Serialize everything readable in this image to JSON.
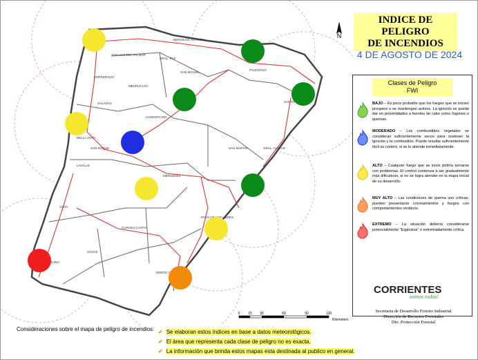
{
  "title_lines": [
    "INDICE DE PELIGRO",
    "DE INCENDIOS"
  ],
  "date": "4 DE AGOSTO DE 2024",
  "north": "N",
  "legend": {
    "title": "Clases de Peligro",
    "subtitle": "FWI",
    "classes": [
      {
        "name": "BAJO",
        "text": "– Es poco probable que los fuegos que se inicien prospere o se mantengan activos. La ignición se puede dar en proximidades a fuentes de calor como fogones o quemas."
      },
      {
        "name": "MODERADO",
        "text": "– Los combustibles vegetales se consideran suficientemente secos para sostener la ignición y la combustión. Puede resultar suficientemente fácil su control, si se lo atiende inmediatamente."
      },
      {
        "name": "ALTO",
        "text": "– Cualquier fuego que se inicie podría tornarse con problemas. El control comienza a ser gradualmente más dificultoso, si no se logra atender en la etapa inicial de su desarrollo."
      },
      {
        "name": "MUY ALTO",
        "text": "– Las condiciones de quema son críticas, pueden presentarse coronamientos y fuegos con comportamientos erráticos."
      },
      {
        "name": "EXTREMO",
        "text": "– La situación debería considerarse potencialmente \"Explosiva\" o extremadamente crítica."
      }
    ]
  },
  "logo": {
    "name": "CORRIENTES",
    "slogan": "somos todos!"
  },
  "agency": [
    "Secretaria de Desarrollo Foresto Industrial",
    "Dirección de Recursos Forestales",
    "Dto. Protección Forestal"
  ],
  "scale": {
    "ticks": [
      "0",
      "15",
      "30",
      "60",
      "90",
      "120"
    ],
    "unit": "Kilometers"
  },
  "considerations": {
    "title": "Consideraciones sobre el mapa de peligro de incendios:",
    "items": [
      "Se elaboran estos índices en base a datos meteorológicos.",
      "El área que representa cada clase de peligro no es exacta.",
      "La información que brinda estos mapas esta destinada al publico en general."
    ]
  },
  "places": [
    "BERON DE ASTRADA",
    "SAN LUIS DEL PALMAR",
    "GRAL. PAZ",
    "ITUZAINGO",
    "EMPEDRADO",
    "SAN MIGUEL",
    "MBURUCUYA",
    "SALADAS",
    "CONCEPCION",
    "SANTO TOME",
    "BELLA VISTA",
    "SAN ROQUE",
    "SAN MARTIN",
    "GRAL. ALVEAR",
    "LAVALLE",
    "MERCEDES",
    "GOYA",
    "PASO DE LOS LIBRES",
    "CURUZU CUATIA",
    "SAUCE",
    "ESQUINA",
    "MONTE CASEROS"
  ]
}
